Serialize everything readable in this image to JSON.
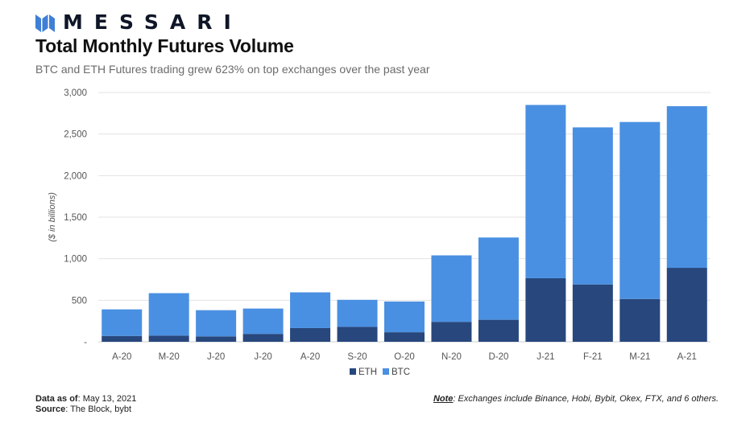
{
  "header": {
    "brand": "MESSARI",
    "title": "Total Monthly Futures Volume",
    "subtitle": "BTC and ETH Futures trading grew 623% on top exchanges over the past year"
  },
  "colors": {
    "eth": "#27477d",
    "btc": "#4a90e2",
    "grid": "#e3e3e3",
    "brand": "#3f7fd6"
  },
  "chart_data": {
    "type": "bar",
    "stacked": true,
    "title": "Total Monthly Futures Volume",
    "xlabel": "",
    "ylabel": "($ in billions)",
    "ylim": [
      0,
      3000
    ],
    "yticks": [
      0,
      500,
      1000,
      1500,
      2000,
      2500,
      3000
    ],
    "ytick_labels": [
      "-",
      "500",
      "1,000",
      "1,500",
      "2,000",
      "2,500",
      "3,000"
    ],
    "grid": true,
    "legend": "bottom-center",
    "categories": [
      "A-20",
      "M-20",
      "J-20",
      "J-20",
      "A-20",
      "S-20",
      "O-20",
      "N-20",
      "D-20",
      "J-21",
      "F-21",
      "M-21",
      "A-21"
    ],
    "series": [
      {
        "name": "ETH",
        "values": [
          70,
          75,
          65,
          95,
          165,
          180,
          115,
          240,
          265,
          765,
          690,
          515,
          890
        ]
      },
      {
        "name": "BTC",
        "values": [
          320,
          510,
          315,
          305,
          430,
          325,
          370,
          800,
          990,
          2085,
          1890,
          2130,
          1945
        ]
      }
    ]
  },
  "footer": {
    "data_label": "Data as of",
    "data_value": ": May 13, 2021",
    "source_label": "Source",
    "source_value": ": The Block, bybt",
    "note_label": "Note",
    "note_value": ": Exchanges include Binance, Hobi, Bybit, Okex, FTX, and 6 others."
  }
}
